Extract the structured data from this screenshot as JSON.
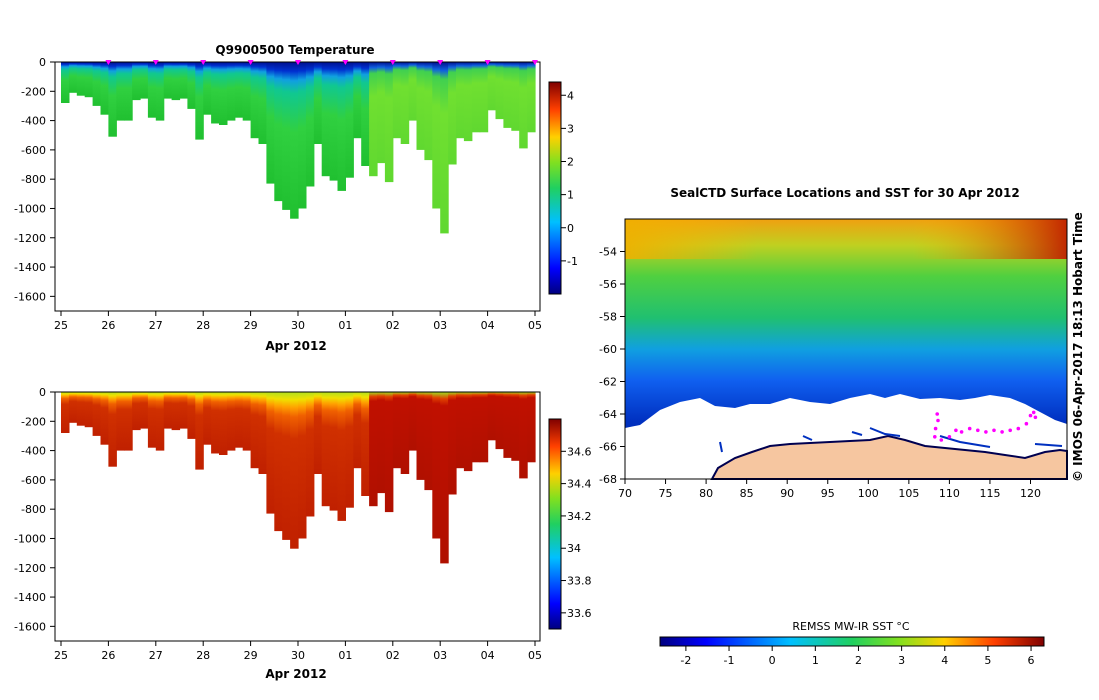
{
  "chart_data": [
    {
      "type": "heatmap",
      "title": "Q9900500  Temperature",
      "xlabel": "Apr 2012",
      "x_ticks": [
        "25",
        "26",
        "27",
        "28",
        "29",
        "30",
        "01",
        "02",
        "03",
        "04",
        "05"
      ],
      "y_ticks": [
        "0",
        "-200",
        "-400",
        "-600",
        "-800",
        "-1000",
        "-1200",
        "-1400",
        "-1600"
      ],
      "ylim": [
        -1700,
        0
      ],
      "colorbar_ticks": [
        "-1",
        "0",
        "1",
        "2",
        "3",
        "4"
      ],
      "colorbar_range": [
        -2,
        4.4
      ],
      "profile_depths": [
        280,
        210,
        230,
        240,
        300,
        360,
        510,
        400,
        400,
        260,
        250,
        380,
        400,
        250,
        260,
        250,
        320,
        530,
        360,
        420,
        430,
        400,
        380,
        400,
        520,
        560,
        830,
        950,
        1010,
        1070,
        1000,
        850,
        560,
        780,
        810,
        880,
        790,
        520,
        710,
        780,
        690,
        820,
        520,
        560,
        400,
        600,
        670,
        1000,
        1170,
        700,
        520,
        540,
        480,
        480,
        330,
        390,
        450,
        470,
        590,
        480
      ],
      "markers": [
        "26",
        "27",
        "28",
        "29",
        "30",
        "01",
        "02",
        "03",
        "04",
        "05"
      ]
    },
    {
      "type": "heatmap",
      "title": "",
      "xlabel": "Apr 2012",
      "x_ticks": [
        "25",
        "26",
        "27",
        "28",
        "29",
        "30",
        "01",
        "02",
        "03",
        "04",
        "05"
      ],
      "y_ticks": [
        "0",
        "-200",
        "-400",
        "-600",
        "-800",
        "-1000",
        "-1200",
        "-1400",
        "-1600"
      ],
      "ylim": [
        -1700,
        0
      ],
      "colorbar_ticks": [
        "33.6",
        "33.8",
        "34",
        "34.2",
        "34.4",
        "34.6"
      ],
      "colorbar_range": [
        33.5,
        34.8
      ]
    },
    {
      "type": "heatmap",
      "title": "SealCTD Surface Locations and SST for 30 Apr 2012",
      "x_ticks": [
        "70",
        "75",
        "80",
        "85",
        "90",
        "95",
        "100",
        "105",
        "110",
        "115",
        "120"
      ],
      "y_ticks": [
        "-54",
        "-56",
        "-58",
        "-60",
        "-62",
        "-64",
        "-66",
        "-68"
      ],
      "xlim": [
        70,
        124.5
      ],
      "ylim": [
        -68,
        -52
      ],
      "colorbar_label": "REMSS MW-IR SST °C",
      "colorbar_ticks": [
        "-2",
        "-1",
        "0",
        "1",
        "2",
        "3",
        "4",
        "5",
        "6"
      ],
      "colorbar_range": [
        -2.6,
        6.3
      ],
      "credit": "© IMOS 06-Apr-2017 18:13 Hobart Time"
    }
  ],
  "colors": {
    "marker": "#ff00ff",
    "land": "#f6c6a0",
    "ice": "#ffffff",
    "axis": "#000000"
  }
}
